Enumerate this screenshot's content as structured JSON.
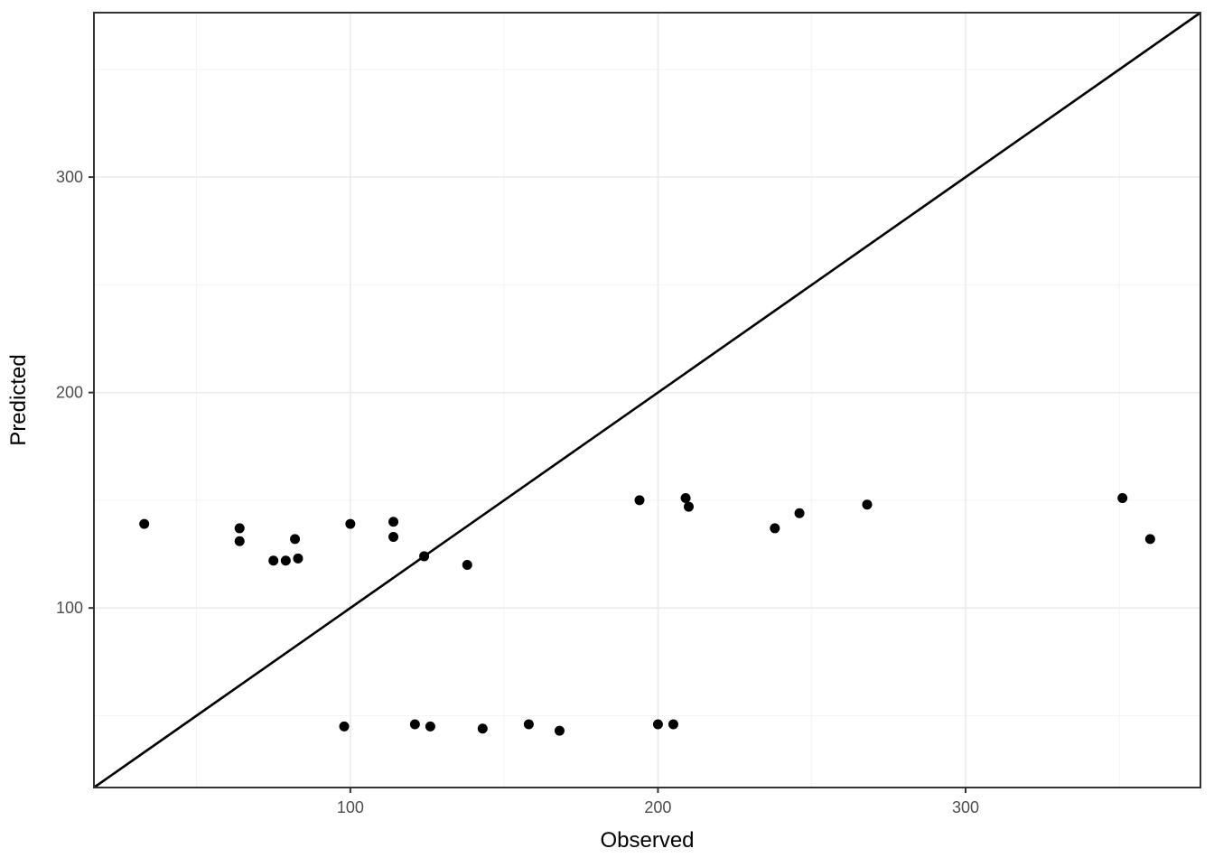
{
  "chart_data": {
    "type": "scatter",
    "title": "",
    "xlabel": "Observed",
    "ylabel": "Predicted",
    "xlim": [
      16.65,
      376.35
    ],
    "ylim": [
      16.65,
      376.35
    ],
    "x_major_ticks": [
      100,
      200,
      300
    ],
    "y_major_ticks": [
      100,
      200,
      300
    ],
    "x_minor_gridlines": [
      50,
      150,
      250,
      350
    ],
    "y_minor_gridlines": [
      50,
      150,
      250,
      350
    ],
    "grid": "major+minor",
    "legend": "none",
    "reference_line": {
      "kind": "identity",
      "slope": 1,
      "intercept": 0
    },
    "series": [
      {
        "name": "predictions",
        "marker": "filled-circle",
        "points": [
          {
            "observed": 33,
            "predicted": 139
          },
          {
            "observed": 64,
            "predicted": 137
          },
          {
            "observed": 64,
            "predicted": 131
          },
          {
            "observed": 75,
            "predicted": 122
          },
          {
            "observed": 79,
            "predicted": 122
          },
          {
            "observed": 82,
            "predicted": 132
          },
          {
            "observed": 83,
            "predicted": 123
          },
          {
            "observed": 100,
            "predicted": 139
          },
          {
            "observed": 114,
            "predicted": 140
          },
          {
            "observed": 114,
            "predicted": 133
          },
          {
            "observed": 124,
            "predicted": 124
          },
          {
            "observed": 138,
            "predicted": 120
          },
          {
            "observed": 194,
            "predicted": 150
          },
          {
            "observed": 209,
            "predicted": 151
          },
          {
            "observed": 210,
            "predicted": 147
          },
          {
            "observed": 238,
            "predicted": 137
          },
          {
            "observed": 246,
            "predicted": 144
          },
          {
            "observed": 268,
            "predicted": 148
          },
          {
            "observed": 351,
            "predicted": 151
          },
          {
            "observed": 360,
            "predicted": 132
          },
          {
            "observed": 98,
            "predicted": 45
          },
          {
            "observed": 121,
            "predicted": 46
          },
          {
            "observed": 126,
            "predicted": 45
          },
          {
            "observed": 143,
            "predicted": 44
          },
          {
            "observed": 158,
            "predicted": 46
          },
          {
            "observed": 168,
            "predicted": 43
          },
          {
            "observed": 200,
            "predicted": 46
          },
          {
            "observed": 205,
            "predicted": 46
          }
        ]
      }
    ],
    "colors": {
      "background": "#ffffff",
      "panel_background": "#ffffff",
      "panel_border": "#333333",
      "grid_major": "#EBEBEB",
      "grid_minor": "#F4F4F4",
      "point": "#000000",
      "reference_line": "#000000",
      "tick_mark": "#333333",
      "tick_label": "#4D4D4D",
      "axis_title": "#000000"
    }
  }
}
